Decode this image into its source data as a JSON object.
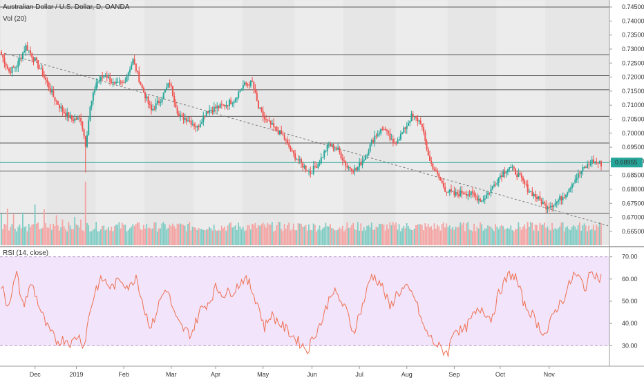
{
  "header": {
    "symbol_title": "Australian Dollar / U.S. Dollar, D, OANDA",
    "volume_label": "Vol (20)",
    "rsi_label": "RSI (14, close)"
  },
  "price_axis": {
    "ticks": [
      "0.74500",
      "0.74000",
      "0.73500",
      "0.73000",
      "0.72500",
      "0.72000",
      "0.71500",
      "0.71000",
      "0.70500",
      "0.70000",
      "0.69500",
      "0.69000",
      "0.68500",
      "0.68000",
      "0.67500",
      "0.67000",
      "0.66500"
    ],
    "min": 0.6625,
    "max": 0.7465,
    "current_price": "0.68955",
    "current_price_color": "#26a69a"
  },
  "rsi_axis": {
    "ticks": [
      "70.00",
      "60.00",
      "50.00",
      "40.00",
      "30.00"
    ],
    "min": 22,
    "max": 73,
    "upper_band": 70,
    "lower_band": 30
  },
  "time_axis": {
    "labels": [
      "Dec",
      "2019",
      "Feb",
      "Mar",
      "Apr",
      "May",
      "Jun",
      "Jul",
      "Aug",
      "Sep",
      "Oct",
      "Nov"
    ]
  },
  "horizontal_levels": [
    0.745,
    0.728,
    0.7205,
    0.7155,
    0.706,
    0.6965,
    0.6865,
    0.6715
  ],
  "trendline": {
    "from_price": 0.7285,
    "to_price": 0.667
  },
  "colors": {
    "up": "#26a69a",
    "down": "#ef5350",
    "up_volume": "#7fccc4",
    "down_volume": "#f4a3a2",
    "rsi_line": "#f07050",
    "rsi_band": "#f1e4fb",
    "level_line": "#555555",
    "trendline": "#777777",
    "price_pane_bg": "#e6e6e6"
  },
  "chart_data": {
    "type": "candlestick",
    "anchors": [
      [
        0,
        0.728
      ],
      [
        5,
        0.722
      ],
      [
        10,
        0.724
      ],
      [
        16,
        0.731
      ],
      [
        22,
        0.726
      ],
      [
        28,
        0.72
      ],
      [
        34,
        0.713
      ],
      [
        40,
        0.708
      ],
      [
        46,
        0.705
      ],
      [
        52,
        0.705
      ],
      [
        55,
        0.696
      ],
      [
        58,
        0.709
      ],
      [
        62,
        0.718
      ],
      [
        68,
        0.721
      ],
      [
        74,
        0.717
      ],
      [
        80,
        0.718
      ],
      [
        86,
        0.726
      ],
      [
        92,
        0.716
      ],
      [
        98,
        0.708
      ],
      [
        104,
        0.712
      ],
      [
        110,
        0.718
      ],
      [
        116,
        0.706
      ],
      [
        122,
        0.705
      ],
      [
        128,
        0.702
      ],
      [
        134,
        0.708
      ],
      [
        140,
        0.709
      ],
      [
        146,
        0.71
      ],
      [
        152,
        0.712
      ],
      [
        158,
        0.717
      ],
      [
        164,
        0.718
      ],
      [
        168,
        0.709
      ],
      [
        172,
        0.705
      ],
      [
        178,
        0.702
      ],
      [
        184,
        0.699
      ],
      [
        190,
        0.693
      ],
      [
        196,
        0.689
      ],
      [
        202,
        0.686
      ],
      [
        208,
        0.69
      ],
      [
        214,
        0.696
      ],
      [
        220,
        0.694
      ],
      [
        226,
        0.688
      ],
      [
        232,
        0.687
      ],
      [
        238,
        0.692
      ],
      [
        244,
        0.699
      ],
      [
        250,
        0.702
      ],
      [
        256,
        0.696
      ],
      [
        262,
        0.7
      ],
      [
        268,
        0.706
      ],
      [
        274,
        0.704
      ],
      [
        280,
        0.69
      ],
      [
        286,
        0.684
      ],
      [
        290,
        0.68
      ],
      [
        296,
        0.678
      ],
      [
        302,
        0.679
      ],
      [
        308,
        0.678
      ],
      [
        314,
        0.676
      ],
      [
        320,
        0.68
      ],
      [
        326,
        0.685
      ],
      [
        332,
        0.688
      ],
      [
        338,
        0.685
      ],
      [
        344,
        0.68
      ],
      [
        350,
        0.677
      ],
      [
        356,
        0.674
      ],
      [
        362,
        0.675
      ],
      [
        368,
        0.678
      ],
      [
        374,
        0.683
      ],
      [
        380,
        0.687
      ],
      [
        386,
        0.69
      ],
      [
        392,
        0.689
      ]
    ],
    "rsi_anchors": [
      [
        0,
        57
      ],
      [
        4,
        48
      ],
      [
        10,
        62
      ],
      [
        14,
        48
      ],
      [
        20,
        58
      ],
      [
        26,
        45
      ],
      [
        30,
        38
      ],
      [
        36,
        32
      ],
      [
        42,
        33
      ],
      [
        46,
        31
      ],
      [
        50,
        35
      ],
      [
        54,
        30
      ],
      [
        58,
        46
      ],
      [
        62,
        56
      ],
      [
        66,
        60
      ],
      [
        72,
        56
      ],
      [
        78,
        60
      ],
      [
        84,
        56
      ],
      [
        88,
        62
      ],
      [
        94,
        45
      ],
      [
        98,
        38
      ],
      [
        104,
        51
      ],
      [
        108,
        56
      ],
      [
        114,
        42
      ],
      [
        118,
        38
      ],
      [
        124,
        35
      ],
      [
        130,
        46
      ],
      [
        136,
        50
      ],
      [
        140,
        56
      ],
      [
        146,
        53
      ],
      [
        152,
        55
      ],
      [
        158,
        60
      ],
      [
        162,
        58
      ],
      [
        168,
        48
      ],
      [
        172,
        38
      ],
      [
        176,
        44
      ],
      [
        182,
        40
      ],
      [
        188,
        36
      ],
      [
        194,
        32
      ],
      [
        200,
        28
      ],
      [
        204,
        34
      ],
      [
        210,
        42
      ],
      [
        216,
        55
      ],
      [
        220,
        52
      ],
      [
        226,
        45
      ],
      [
        230,
        36
      ],
      [
        236,
        48
      ],
      [
        242,
        62
      ],
      [
        248,
        58
      ],
      [
        254,
        47
      ],
      [
        258,
        53
      ],
      [
        264,
        56
      ],
      [
        270,
        52
      ],
      [
        276,
        38
      ],
      [
        282,
        32
      ],
      [
        288,
        28
      ],
      [
        292,
        27
      ],
      [
        296,
        38
      ],
      [
        302,
        36
      ],
      [
        308,
        43
      ],
      [
        314,
        47
      ],
      [
        320,
        42
      ],
      [
        326,
        55
      ],
      [
        332,
        62
      ],
      [
        336,
        61
      ],
      [
        342,
        48
      ],
      [
        346,
        45
      ],
      [
        352,
        38
      ],
      [
        356,
        35
      ],
      [
        362,
        46
      ],
      [
        368,
        52
      ],
      [
        374,
        62
      ],
      [
        378,
        60
      ],
      [
        382,
        56
      ],
      [
        386,
        65
      ],
      [
        390,
        60
      ],
      [
        392,
        61
      ]
    ]
  }
}
